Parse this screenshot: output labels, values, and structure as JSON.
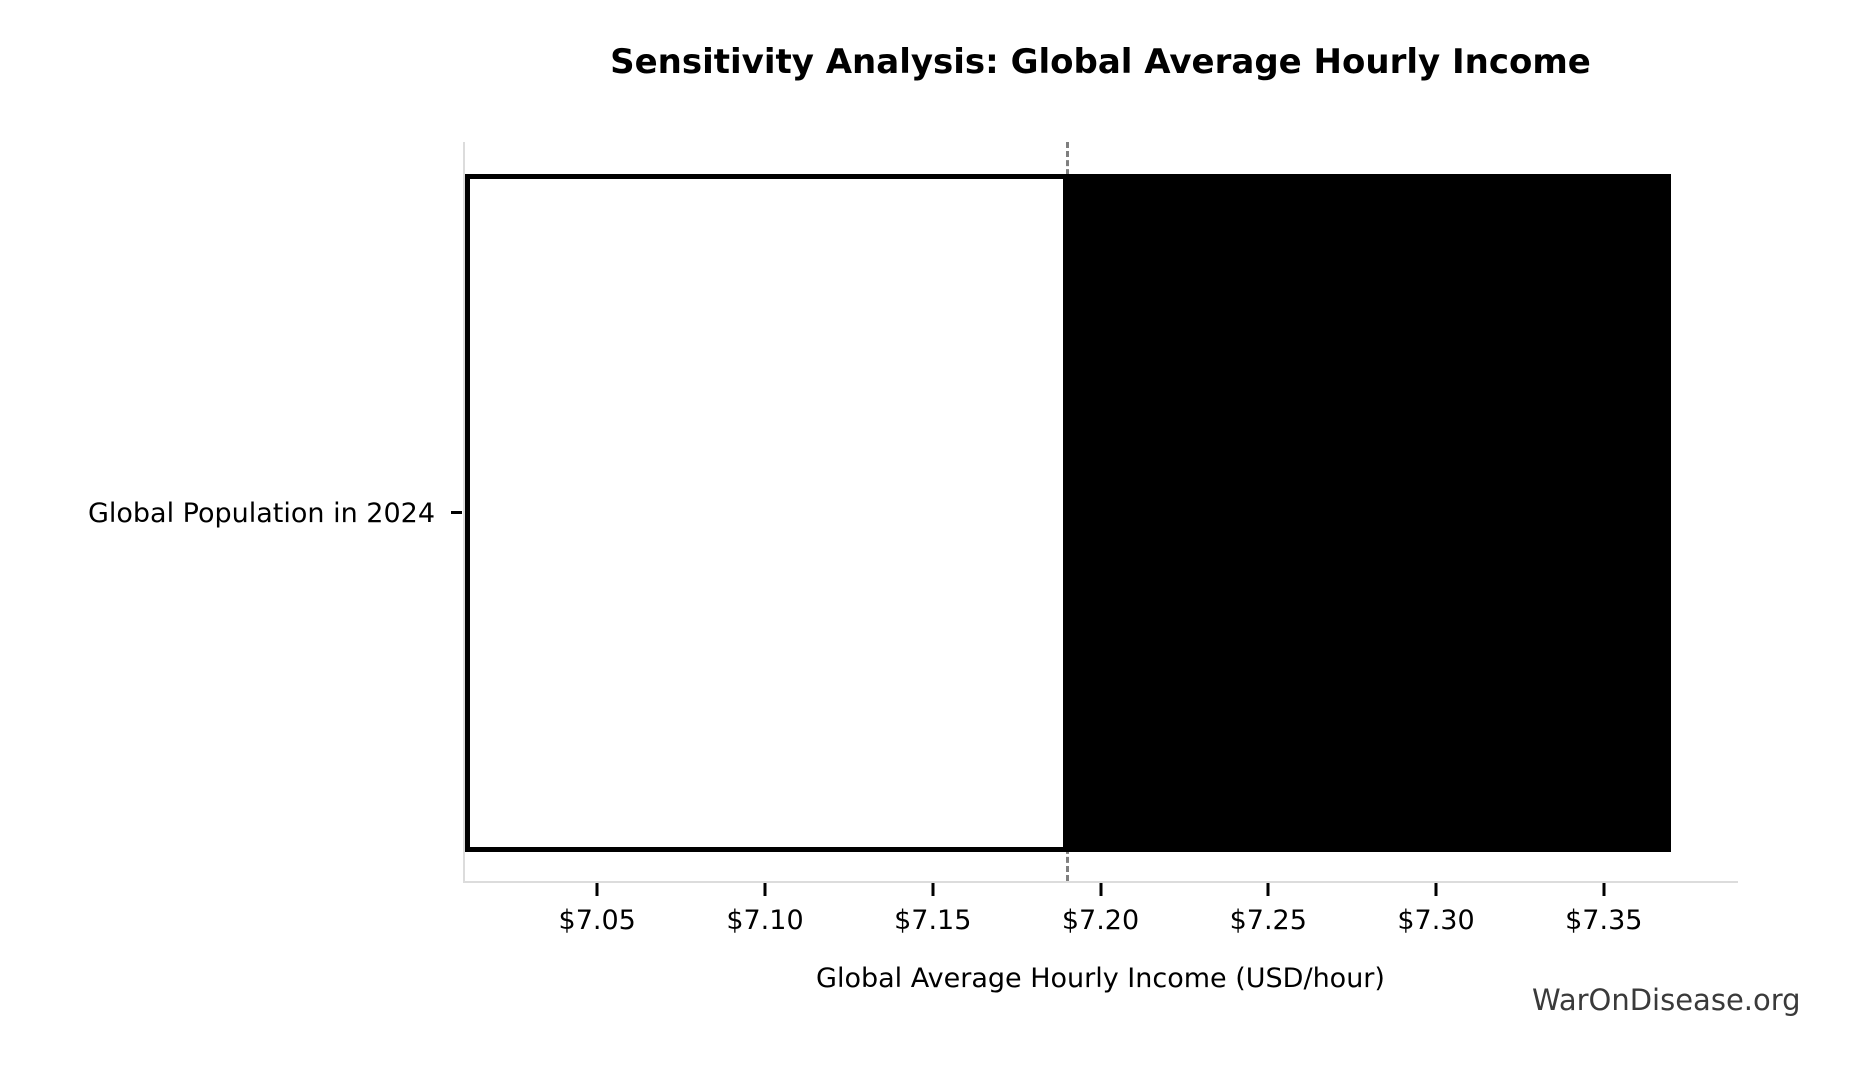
{
  "chart_data": {
    "type": "bar",
    "orientation": "horizontal",
    "title": "Sensitivity Analysis: Global Average Hourly Income",
    "xlabel": "Global Average Hourly Income (USD/hour)",
    "categories": [
      "Global Population in 2024"
    ],
    "bar": {
      "low": 7.01,
      "base": 7.19,
      "high": 7.37
    },
    "series": [
      {
        "name": "below-baseline-segment",
        "from": 7.01,
        "to": 7.19,
        "fill": "#ffffff",
        "edge": "#000000"
      },
      {
        "name": "above-baseline-segment",
        "from": 7.19,
        "to": 7.37,
        "fill": "#000000",
        "edge": "#000000"
      }
    ],
    "baseline": 7.19,
    "xlim": [
      7.01,
      7.39
    ],
    "x_ticks": [
      {
        "value": 7.05,
        "label": "$7.05"
      },
      {
        "value": 7.1,
        "label": "$7.10"
      },
      {
        "value": 7.15,
        "label": "$7.15"
      },
      {
        "value": 7.2,
        "label": "$7.20"
      },
      {
        "value": 7.25,
        "label": "$7.25"
      },
      {
        "value": 7.3,
        "label": "$7.30"
      },
      {
        "value": 7.35,
        "label": "$7.35"
      }
    ],
    "grid": false,
    "legend": null,
    "watermark": "WarOnDisease.org",
    "colors": {
      "low_segment_fill": "#ffffff",
      "high_segment_fill": "#000000",
      "bar_edge": "#000000",
      "baseline_dash": "#7f7f7f",
      "spine": "#dcdcdc",
      "tick": "#000000",
      "text": "#000000",
      "watermark": "#3a3a3a",
      "background": "#ffffff"
    }
  }
}
